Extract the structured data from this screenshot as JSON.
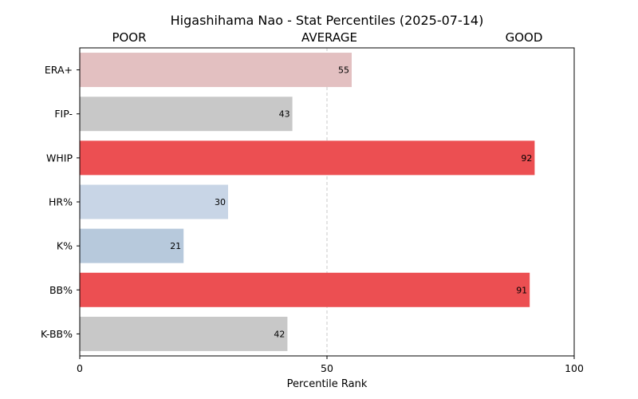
{
  "chart_data": {
    "type": "bar",
    "orientation": "horizontal",
    "title": "Higashihama Nao - Stat Percentiles (2025-07-14)",
    "xlabel": "Percentile Rank",
    "ylabel": "",
    "xlim": [
      0,
      100
    ],
    "xticks": [
      0,
      50,
      100
    ],
    "zone_labels": [
      "POOR",
      "AVERAGE",
      "GOOD"
    ],
    "reference_line": 50,
    "grid": false,
    "categories": [
      "ERA+",
      "FIP-",
      "WHIP",
      "HR%",
      "K%",
      "BB%",
      "K-BB%"
    ],
    "values": [
      55,
      43,
      92,
      30,
      21,
      91,
      42
    ],
    "colors": [
      "#e3c0c1",
      "#c8c8c8",
      "#ec4f52",
      "#c8d5e6",
      "#b7c9dc",
      "#ec4f52",
      "#c8c8c8"
    ]
  }
}
